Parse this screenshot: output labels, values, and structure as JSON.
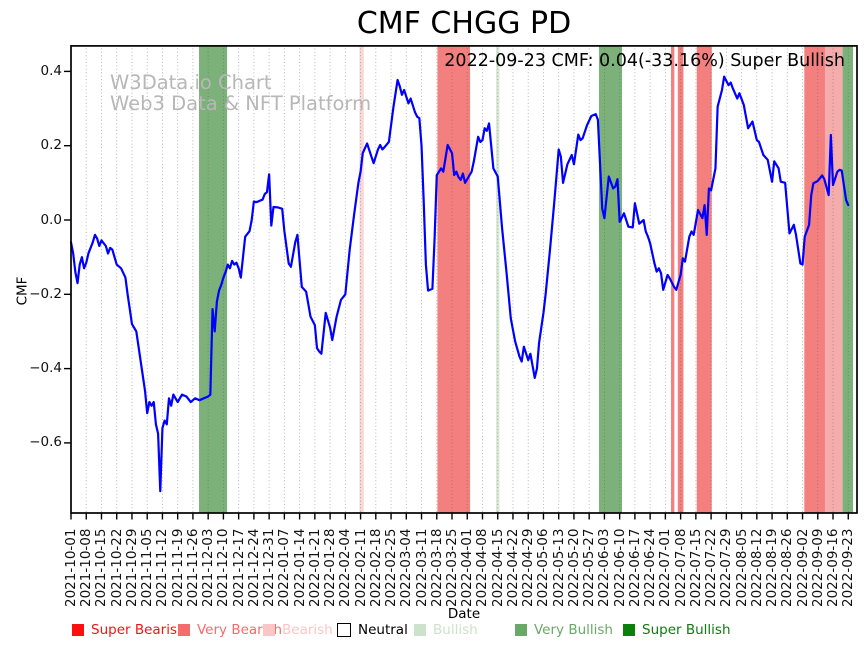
{
  "title": "CMF CHGG PD",
  "annotation": "2022-09-23 CMF: 0.04(-33.16%) Super Bullish",
  "watermark": {
    "line1": "W3Data.io Chart",
    "line2": "Web3 Data & NFT Platform"
  },
  "chart_data": {
    "type": "line",
    "title": "CMF CHGG PD",
    "xlabel": "Date",
    "ylabel": "CMF",
    "x_start_date": "2021-10-01",
    "x_end_date": "2022-09-23",
    "x_tick_labels": [
      "2021-10-01",
      "2021-10-08",
      "2021-10-15",
      "2021-10-22",
      "2021-10-29",
      "2021-11-05",
      "2021-11-12",
      "2021-11-19",
      "2021-11-26",
      "2021-12-03",
      "2021-12-10",
      "2021-12-17",
      "2021-12-24",
      "2021-12-31",
      "2022-01-07",
      "2022-01-14",
      "2022-01-21",
      "2022-01-28",
      "2022-02-04",
      "2022-02-11",
      "2022-02-18",
      "2022-02-25",
      "2022-03-04",
      "2022-03-11",
      "2022-03-18",
      "2022-03-25",
      "2022-04-01",
      "2022-04-08",
      "2022-04-15",
      "2022-04-22",
      "2022-04-29",
      "2022-05-06",
      "2022-05-13",
      "2022-05-20",
      "2022-05-27",
      "2022-06-03",
      "2022-06-10",
      "2022-06-17",
      "2022-06-24",
      "2022-07-01",
      "2022-07-08",
      "2022-07-15",
      "2022-07-22",
      "2022-07-29",
      "2022-08-05",
      "2022-08-12",
      "2022-08-19",
      "2022-08-26",
      "2022-09-02",
      "2022-09-09",
      "2022-09-16",
      "2022-09-23"
    ],
    "y_tick_values": [
      0.4,
      0.2,
      0.0,
      -0.2,
      -0.4,
      -0.6
    ],
    "y_tick_labels": [
      "0.4",
      "0.2",
      "0.0",
      "−0.2",
      "−0.4",
      "−0.6"
    ],
    "ylim": [
      -0.79,
      0.471
    ],
    "grid": "vertical-dotted",
    "legend_position": "bottom",
    "line_color": "#0000ff",
    "grid_color": "rgba(80,80,80,0.45)",
    "band_colors": {
      "very_bearish": "#f47f7f",
      "bearish_light": "#fad8d8",
      "bearish_medium": "#f5acac",
      "bullish_light": "#d9ebd7",
      "very_bullish": "#7db17a",
      "super_bullish": "#7db17a"
    },
    "bands": [
      {
        "start_day": 58.8,
        "end_day": 71.7,
        "level": "very_bullish"
      },
      {
        "start_day": 132.5,
        "end_day": 134.5,
        "level": "bearish_light"
      },
      {
        "start_day": 168.3,
        "end_day": 183.3,
        "level": "very_bearish"
      },
      {
        "start_day": 195.2,
        "end_day": 196.8,
        "level": "bullish_light"
      },
      {
        "start_day": 242.5,
        "end_day": 253.1,
        "level": "very_bullish"
      },
      {
        "start_day": 275.6,
        "end_day": 277.1,
        "level": "very_bearish"
      },
      {
        "start_day": 278.7,
        "end_day": 281.3,
        "level": "very_bearish"
      },
      {
        "start_day": 287.4,
        "end_day": 294.3,
        "level": "very_bearish"
      },
      {
        "start_day": 336.8,
        "end_day": 346.3,
        "level": "very_bearish"
      },
      {
        "start_day": 346.3,
        "end_day": 354.4,
        "level": "bearish_medium"
      },
      {
        "start_day": 354.4,
        "end_day": 359.2,
        "level": "super_bullish"
      }
    ],
    "series": [
      {
        "name": "CMF",
        "points": [
          [
            0,
            -0.06
          ],
          [
            1,
            -0.09
          ],
          [
            2,
            -0.14
          ],
          [
            3,
            -0.17
          ],
          [
            4,
            -0.12
          ],
          [
            5,
            -0.1
          ],
          [
            6,
            -0.13
          ],
          [
            7,
            -0.115
          ],
          [
            8,
            -0.09
          ],
          [
            10,
            -0.06
          ],
          [
            11,
            -0.04
          ],
          [
            12,
            -0.05
          ],
          [
            13,
            -0.07
          ],
          [
            14,
            -0.055
          ],
          [
            16,
            -0.07
          ],
          [
            17,
            -0.09
          ],
          [
            18,
            -0.075
          ],
          [
            19,
            -0.08
          ],
          [
            21,
            -0.12
          ],
          [
            23,
            -0.13
          ],
          [
            25,
            -0.155
          ],
          [
            26,
            -0.2
          ],
          [
            28,
            -0.28
          ],
          [
            30,
            -0.3
          ],
          [
            31,
            -0.34
          ],
          [
            33,
            -0.42
          ],
          [
            34,
            -0.46
          ],
          [
            35,
            -0.52
          ],
          [
            36,
            -0.49
          ],
          [
            37,
            -0.5
          ],
          [
            38,
            -0.49
          ],
          [
            39,
            -0.55
          ],
          [
            40,
            -0.575
          ],
          [
            41,
            -0.73
          ],
          [
            42,
            -0.56
          ],
          [
            43,
            -0.54
          ],
          [
            44,
            -0.55
          ],
          [
            45,
            -0.48
          ],
          [
            46,
            -0.5
          ],
          [
            47,
            -0.47
          ],
          [
            48,
            -0.48
          ],
          [
            49,
            -0.49
          ],
          [
            51,
            -0.47
          ],
          [
            53,
            -0.475
          ],
          [
            55,
            -0.49
          ],
          [
            57,
            -0.48
          ],
          [
            59,
            -0.485
          ],
          [
            61,
            -0.48
          ],
          [
            63,
            -0.475
          ],
          [
            64,
            -0.47
          ],
          [
            65,
            -0.24
          ],
          [
            66,
            -0.3
          ],
          [
            67,
            -0.22
          ],
          [
            68,
            -0.19
          ],
          [
            69,
            -0.175
          ],
          [
            70,
            -0.155
          ],
          [
            71,
            -0.14
          ],
          [
            72,
            -0.12
          ],
          [
            73,
            -0.13
          ],
          [
            74,
            -0.11
          ],
          [
            75,
            -0.12
          ],
          [
            76,
            -0.115
          ],
          [
            77,
            -0.13
          ],
          [
            78,
            -0.155
          ],
          [
            79,
            -0.1
          ],
          [
            80,
            -0.045
          ],
          [
            82,
            -0.03
          ],
          [
            83,
            0.0
          ],
          [
            84,
            0.05
          ],
          [
            85,
            0.048
          ],
          [
            86,
            0.05
          ],
          [
            88,
            0.055
          ],
          [
            89,
            0.07
          ],
          [
            90,
            0.075
          ],
          [
            91,
            0.123
          ],
          [
            92,
            -0.015
          ],
          [
            93,
            0.035
          ],
          [
            95,
            0.034
          ],
          [
            97,
            0.03
          ],
          [
            98,
            -0.03
          ],
          [
            100,
            -0.117
          ],
          [
            101,
            -0.126
          ],
          [
            103,
            -0.06
          ],
          [
            104,
            -0.04
          ],
          [
            106,
            -0.18
          ],
          [
            108,
            -0.193
          ],
          [
            110,
            -0.26
          ],
          [
            112,
            -0.283
          ],
          [
            113,
            -0.345
          ],
          [
            114,
            -0.354
          ],
          [
            115,
            -0.36
          ],
          [
            117,
            -0.25
          ],
          [
            119,
            -0.29
          ],
          [
            120,
            -0.323
          ],
          [
            122,
            -0.26
          ],
          [
            124,
            -0.215
          ],
          [
            126,
            -0.2
          ],
          [
            128,
            -0.08
          ],
          [
            130,
            0.013
          ],
          [
            132,
            0.1
          ],
          [
            133,
            0.13
          ],
          [
            134,
            0.18
          ],
          [
            136,
            0.206
          ],
          [
            138,
            0.17
          ],
          [
            139,
            0.153
          ],
          [
            141,
            0.19
          ],
          [
            142,
            0.202
          ],
          [
            143,
            0.19
          ],
          [
            144,
            0.196
          ],
          [
            146,
            0.21
          ],
          [
            148,
            0.3
          ],
          [
            150,
            0.377
          ],
          [
            151,
            0.36
          ],
          [
            152,
            0.337
          ],
          [
            153,
            0.35
          ],
          [
            155,
            0.314
          ],
          [
            156,
            0.327
          ],
          [
            158,
            0.29
          ],
          [
            159,
            0.278
          ],
          [
            160,
            0.274
          ],
          [
            161,
            0.2
          ],
          [
            162,
            0.05
          ],
          [
            163,
            -0.12
          ],
          [
            164,
            -0.19
          ],
          [
            166,
            -0.185
          ],
          [
            167,
            -0.05
          ],
          [
            168,
            0.121
          ],
          [
            170,
            0.139
          ],
          [
            171,
            0.13
          ],
          [
            173,
            0.202
          ],
          [
            175,
            0.18
          ],
          [
            176,
            0.121
          ],
          [
            177,
            0.13
          ],
          [
            178,
            0.115
          ],
          [
            179,
            0.108
          ],
          [
            180,
            0.125
          ],
          [
            181,
            0.1
          ],
          [
            182,
            0.11
          ],
          [
            184,
            0.13
          ],
          [
            185,
            0.157
          ],
          [
            187,
            0.224
          ],
          [
            188,
            0.21
          ],
          [
            189,
            0.215
          ],
          [
            190,
            0.247
          ],
          [
            191,
            0.24
          ],
          [
            192,
            0.26
          ],
          [
            194,
            0.139
          ],
          [
            196,
            0.117
          ],
          [
            198,
            -0.022
          ],
          [
            200,
            -0.139
          ],
          [
            202,
            -0.265
          ],
          [
            204,
            -0.327
          ],
          [
            206,
            -0.368
          ],
          [
            207,
            -0.381
          ],
          [
            208,
            -0.341
          ],
          [
            210,
            -0.377
          ],
          [
            211,
            -0.36
          ],
          [
            213,
            -0.425
          ],
          [
            214,
            -0.4
          ],
          [
            215,
            -0.33
          ],
          [
            217,
            -0.25
          ],
          [
            218,
            -0.2
          ],
          [
            220,
            -0.08
          ],
          [
            222,
            0.05
          ],
          [
            224,
            0.19
          ],
          [
            225,
            0.17
          ],
          [
            226,
            0.1
          ],
          [
            228,
            0.15
          ],
          [
            230,
            0.175
          ],
          [
            231,
            0.15
          ],
          [
            233,
            0.23
          ],
          [
            234,
            0.215
          ],
          [
            235,
            0.22
          ],
          [
            237,
            0.255
          ],
          [
            239,
            0.28
          ],
          [
            241,
            0.285
          ],
          [
            242,
            0.27
          ],
          [
            244,
            0.031
          ],
          [
            245,
            0.005
          ],
          [
            247,
            0.117
          ],
          [
            249,
            0.085
          ],
          [
            250,
            0.09
          ],
          [
            251,
            0.11
          ],
          [
            252,
            -0.005
          ],
          [
            254,
            0.018
          ],
          [
            255,
            0.0
          ],
          [
            256,
            -0.018
          ],
          [
            258,
            -0.02
          ],
          [
            259,
            0.045
          ],
          [
            261,
            -0.01
          ],
          [
            263,
            0.0
          ],
          [
            264,
            -0.031
          ],
          [
            265,
            -0.045
          ],
          [
            266,
            -0.063
          ],
          [
            268,
            -0.117
          ],
          [
            269,
            -0.139
          ],
          [
            270,
            -0.13
          ],
          [
            271,
            -0.143
          ],
          [
            272,
            -0.188
          ],
          [
            274,
            -0.148
          ],
          [
            275,
            -0.157
          ],
          [
            277,
            -0.18
          ],
          [
            278,
            -0.188
          ],
          [
            280,
            -0.148
          ],
          [
            281,
            -0.103
          ],
          [
            282,
            -0.112
          ],
          [
            284,
            -0.045
          ],
          [
            285,
            -0.031
          ],
          [
            286,
            -0.04
          ],
          [
            288,
            0.027
          ],
          [
            290,
            0.005
          ],
          [
            291,
            0.04
          ],
          [
            292,
            -0.04
          ],
          [
            293,
            0.085
          ],
          [
            294,
            0.08
          ],
          [
            296,
            0.139
          ],
          [
            297,
            0.305
          ],
          [
            299,
            0.35
          ],
          [
            300,
            0.386
          ],
          [
            302,
            0.363
          ],
          [
            303,
            0.37
          ],
          [
            304,
            0.354
          ],
          [
            306,
            0.327
          ],
          [
            307,
            0.341
          ],
          [
            309,
            0.31
          ],
          [
            311,
            0.247
          ],
          [
            313,
            0.265
          ],
          [
            315,
            0.215
          ],
          [
            316,
            0.21
          ],
          [
            318,
            0.175
          ],
          [
            320,
            0.162
          ],
          [
            322,
            0.103
          ],
          [
            323,
            0.158
          ],
          [
            325,
            0.139
          ],
          [
            326,
            0.103
          ],
          [
            328,
            0.1
          ],
          [
            330,
            -0.036
          ],
          [
            332,
            -0.013
          ],
          [
            333,
            -0.04
          ],
          [
            335,
            -0.117
          ],
          [
            336,
            -0.12
          ],
          [
            337,
            -0.045
          ],
          [
            339,
            -0.013
          ],
          [
            340,
            0.067
          ],
          [
            341,
            0.099
          ],
          [
            343,
            0.105
          ],
          [
            345,
            0.12
          ],
          [
            346,
            0.11
          ],
          [
            348,
            0.067
          ],
          [
            349,
            0.229
          ],
          [
            350,
            0.094
          ],
          [
            352,
            0.13
          ],
          [
            353,
            0.135
          ],
          [
            354,
            0.133
          ],
          [
            356,
            0.054
          ],
          [
            357,
            0.04
          ]
        ]
      }
    ]
  },
  "legend": {
    "items": [
      {
        "label": "Super Bearish",
        "text_color": "#f01515",
        "swatch_color": "#fb0f0f",
        "swatch_border": "none"
      },
      {
        "label": "Very Bearish",
        "text_color": "#f56c6c",
        "swatch_color": "#f56c6c",
        "swatch_border": "none"
      },
      {
        "label": "Bearish",
        "text_color": "#fbc6c6",
        "swatch_color": "#fbc6c6",
        "swatch_border": "none"
      },
      {
        "label": "Neutral",
        "text_color": "#000000",
        "swatch_color": "#ffffff",
        "swatch_border": "1px solid #000"
      },
      {
        "label": "Bullish",
        "text_color": "#cde2cb",
        "swatch_color": "#cde2cb",
        "swatch_border": "none"
      },
      {
        "label": "Very Bullish",
        "text_color": "#69a966",
        "swatch_color": "#69a966",
        "swatch_border": "none"
      },
      {
        "label": "Super Bullish",
        "text_color": "#117a11",
        "swatch_color": "#0b800b",
        "swatch_border": "none"
      }
    ]
  }
}
